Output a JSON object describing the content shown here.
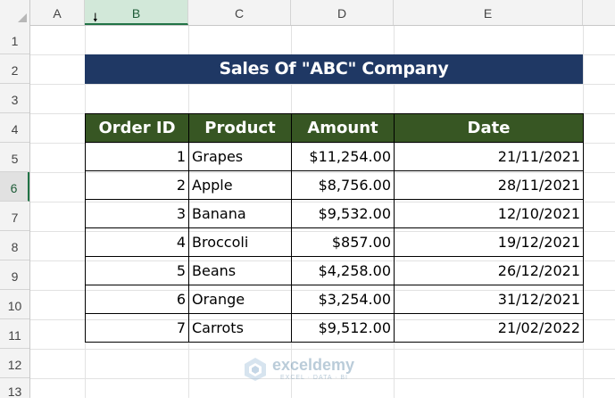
{
  "columns": [
    "A",
    "B",
    "C",
    "D",
    "E"
  ],
  "rows": [
    "1",
    "2",
    "3",
    "4",
    "5",
    "6",
    "7",
    "8",
    "9",
    "10",
    "11",
    "12",
    "13"
  ],
  "title": "Sales Of \"ABC\" Company",
  "table": {
    "headers": [
      "Order ID",
      "Product",
      "Amount",
      "Date"
    ],
    "rows": [
      {
        "id": "1",
        "product": "Grapes",
        "amount": "$11,254.00",
        "date": "21/11/2021"
      },
      {
        "id": "2",
        "product": "Apple",
        "amount": "$8,756.00",
        "date": "28/11/2021"
      },
      {
        "id": "3",
        "product": "Banana",
        "amount": "$9,532.00",
        "date": "12/10/2021"
      },
      {
        "id": "4",
        "product": "Broccoli",
        "amount": "$857.00",
        "date": "19/12/2021"
      },
      {
        "id": "5",
        "product": "Beans",
        "amount": "$4,258.00",
        "date": "26/12/2021"
      },
      {
        "id": "6",
        "product": "Orange",
        "amount": "$3,254.00",
        "date": "31/12/2021"
      },
      {
        "id": "7",
        "product": "Carrots",
        "amount": "$9,512.00",
        "date": "21/02/2022"
      }
    ]
  },
  "watermark": {
    "name": "exceldemy",
    "tagline": "EXCEL · DATA · BI"
  },
  "colors": {
    "title_bg": "#1f3864",
    "header_bg": "#375623",
    "selection": "#217346"
  },
  "icons": {
    "cursor": "select-column-arrow-icon"
  }
}
